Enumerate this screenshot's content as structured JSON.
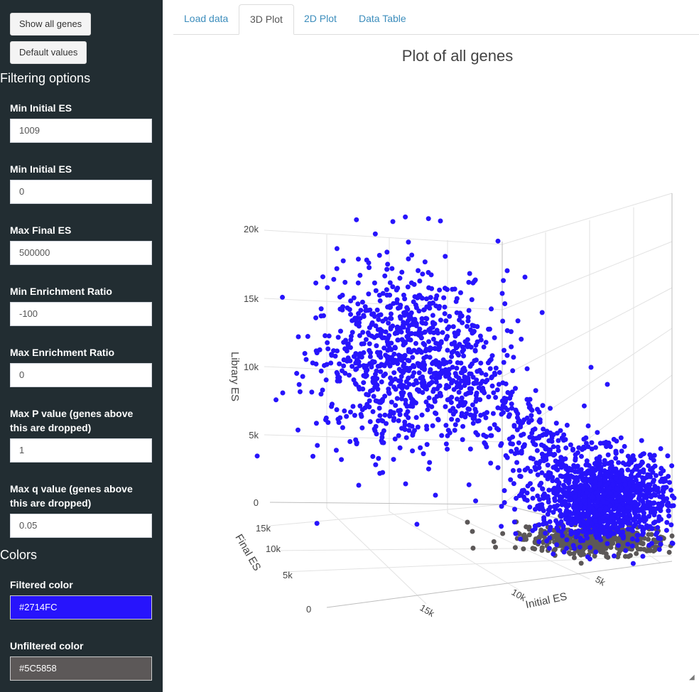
{
  "sidebar": {
    "show_all_genes": "Show all genes",
    "default_values": "Default values",
    "filtering_title": "Filtering options",
    "fields": [
      {
        "label": "Min Initial ES",
        "value": "1009"
      },
      {
        "label": "Min Initial ES",
        "value": "0"
      },
      {
        "label": "Max Final ES",
        "value": "500000"
      },
      {
        "label": "Min Enrichment Ratio",
        "value": "-100"
      },
      {
        "label": "Max Enrichment Ratio",
        "value": "0"
      },
      {
        "label": "Max P value (genes above this are dropped)",
        "value": "1"
      },
      {
        "label": "Max q value (genes above this are dropped)",
        "value": "0.05"
      }
    ],
    "colors_title": "Colors",
    "filtered_color": {
      "label": "Filtered color",
      "value": "#2714FC"
    },
    "unfiltered_color": {
      "label": "Unfiltered color",
      "value": "#5C5858"
    }
  },
  "tabs": [
    {
      "label": "Load data",
      "active": false
    },
    {
      "label": "3D Plot",
      "active": true
    },
    {
      "label": "2D Plot",
      "active": false
    },
    {
      "label": "Data Table",
      "active": false
    }
  ],
  "plot": {
    "title": "Plot of all genes",
    "z_label": "Library ES",
    "y_label": "Final ES",
    "x_label": "Initial ES",
    "z_ticks": [
      "0",
      "5k",
      "10k",
      "15k",
      "20k"
    ],
    "y_ticks": [
      "0",
      "5k",
      "10k",
      "15k"
    ],
    "x_ticks": [
      "5k",
      "10k",
      "15k"
    ]
  },
  "chart_data": {
    "type": "scatter",
    "title": "Plot of all genes",
    "xlabel": "Initial ES",
    "ylabel": "Final ES",
    "zlabel": "Library ES",
    "zlim": [
      0,
      22000
    ],
    "series": [
      {
        "color": "#2714FC",
        "approx_points": 2500
      },
      {
        "color": "#5C5858",
        "approx_points": 900
      }
    ]
  }
}
